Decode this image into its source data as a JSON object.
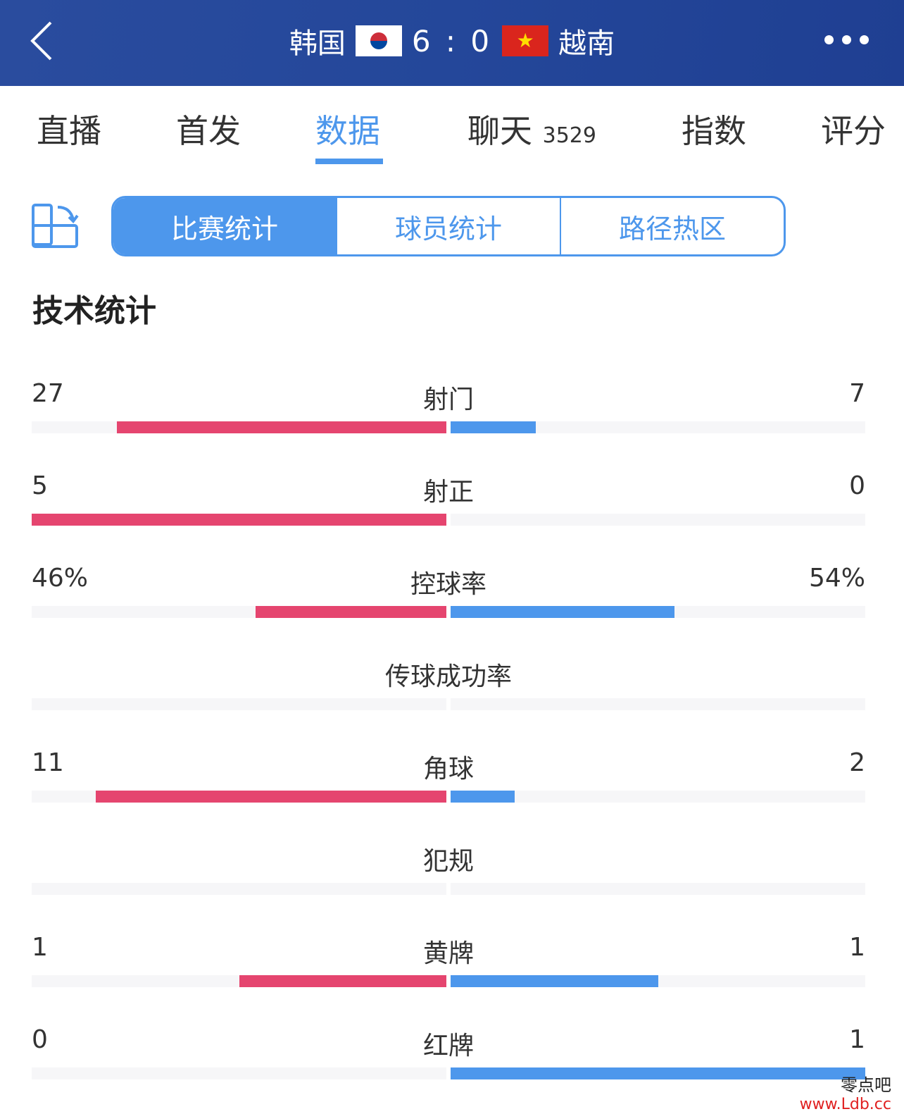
{
  "header": {
    "home_team": "韩国",
    "away_team": "越南",
    "score": "6 : 0",
    "home_flag": "korea-flag",
    "away_flag": "vietnam-flag"
  },
  "tabs": [
    {
      "label": "直播"
    },
    {
      "label": "首发"
    },
    {
      "label": "数据",
      "active": true
    },
    {
      "label": "聊天",
      "count": "3529"
    },
    {
      "label": "指数"
    },
    {
      "label": "评分"
    }
  ],
  "segments": [
    "比赛统计",
    "球员统计",
    "路径热区"
  ],
  "section_title": "技术统计",
  "colors": {
    "home": "#e5456f",
    "away": "#4d97ec",
    "accent": "#4d97ec"
  },
  "stats": [
    {
      "label": "射门",
      "home": "27",
      "away": "7",
      "home_frac": 0.794,
      "away_frac": 0.206
    },
    {
      "label": "射正",
      "home": "5",
      "away": "0",
      "home_frac": 1,
      "away_frac": 0
    },
    {
      "label": "控球率",
      "home": "46%",
      "away": "54%",
      "home_frac": 0.46,
      "away_frac": 0.54
    },
    {
      "label": "传球成功率",
      "home": "",
      "away": "",
      "home_frac": 0,
      "away_frac": 0
    },
    {
      "label": "角球",
      "home": "11",
      "away": "2",
      "home_frac": 0.846,
      "away_frac": 0.154
    },
    {
      "label": "犯规",
      "home": "",
      "away": "",
      "home_frac": 0,
      "away_frac": 0
    },
    {
      "label": "黄牌",
      "home": "1",
      "away": "1",
      "home_frac": 0.5,
      "away_frac": 0.5
    },
    {
      "label": "红牌",
      "home": "0",
      "away": "1",
      "home_frac": 0,
      "away_frac": 1
    }
  ],
  "watermark": {
    "line1": "零点吧",
    "line2": "www.Ldb.cc"
  }
}
